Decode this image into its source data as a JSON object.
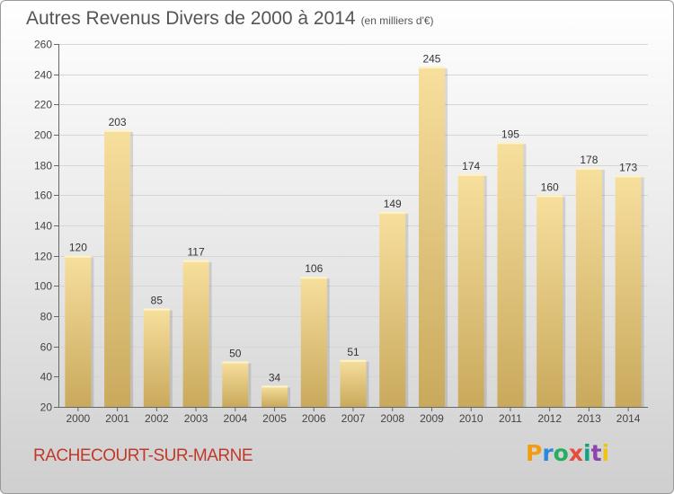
{
  "header": {
    "title": "Autres Revenus Divers de 2000 à 2014",
    "unit": "(en milliers d'€)"
  },
  "footer": {
    "commune": "RACHECOURT-SUR-MARNE",
    "logo": "Proxiti"
  },
  "colors": {
    "bar_light": "#f7df9d",
    "bar_dark": "#c9a95c",
    "commune_text": "#c0392b",
    "axis": "#666666"
  },
  "chart_data": {
    "type": "bar",
    "title": "Autres Revenus Divers de 2000 à 2014",
    "subtitle": "(en milliers d'€)",
    "categories": [
      "2000",
      "2001",
      "2002",
      "2003",
      "2004",
      "2005",
      "2006",
      "2007",
      "2008",
      "2009",
      "2010",
      "2011",
      "2012",
      "2013",
      "2014"
    ],
    "values": [
      120,
      203,
      85,
      117,
      50,
      34,
      106,
      51,
      149,
      245,
      174,
      195,
      160,
      178,
      173
    ],
    "ylim": [
      20,
      260
    ],
    "yticks": [
      20,
      40,
      60,
      80,
      100,
      120,
      140,
      160,
      180,
      200,
      220,
      240,
      260
    ],
    "grid": true,
    "data_labels": true
  }
}
